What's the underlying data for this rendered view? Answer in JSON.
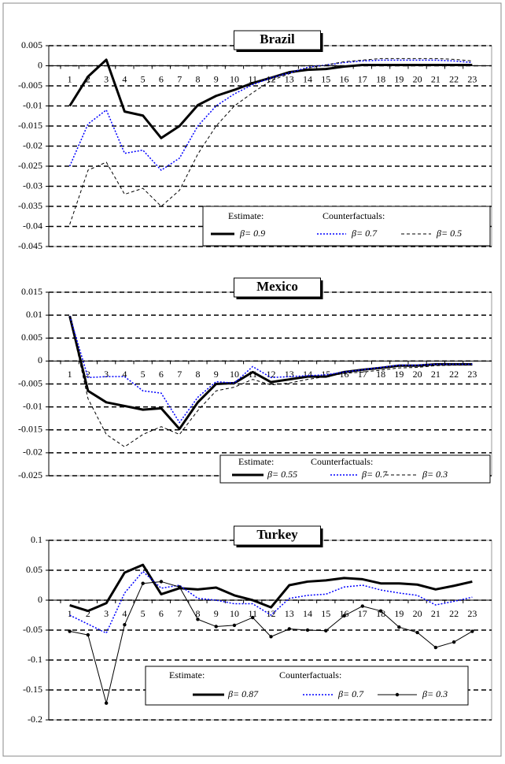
{
  "chart_data": [
    {
      "type": "line",
      "title": "Brazil",
      "categories": [
        1,
        2,
        3,
        4,
        5,
        6,
        7,
        8,
        9,
        10,
        11,
        12,
        13,
        14,
        15,
        16,
        17,
        18,
        19,
        20,
        21,
        22,
        23
      ],
      "ylim": [
        -0.045,
        0.005
      ],
      "yticks": [
        0.005,
        0,
        -0.005,
        -0.01,
        -0.015,
        -0.02,
        -0.025,
        -0.03,
        -0.035,
        -0.04,
        -0.045
      ],
      "grid": true,
      "legend_headings": [
        "Estimate:",
        "Counterfactuals:"
      ],
      "series": [
        {
          "name": "β= 0.9",
          "color": "#000000",
          "style": "thick",
          "values": [
            -0.01,
            -0.0027,
            0.0015,
            -0.0114,
            -0.0124,
            -0.018,
            -0.015,
            -0.0098,
            -0.0075,
            -0.006,
            -0.0043,
            -0.003,
            -0.0016,
            -0.001,
            -0.0008,
            -0.0002,
            0.0002,
            0.0002,
            0.0002,
            0.0002,
            0.0002,
            0.0002,
            0.0002
          ]
        },
        {
          "name": "β= 0.7",
          "color": "#0000ff",
          "style": "dotted",
          "values": [
            -0.025,
            -0.0145,
            -0.011,
            -0.0218,
            -0.021,
            -0.026,
            -0.023,
            -0.015,
            -0.01,
            -0.007,
            -0.0047,
            -0.003,
            -0.0018,
            -0.0004,
            0.0002,
            0.0008,
            0.0012,
            0.0014,
            0.0014,
            0.0014,
            0.0014,
            0.0012,
            0.0008
          ]
        },
        {
          "name": "β= 0.5",
          "color": "#000000",
          "style": "dashed",
          "values": [
            -0.0395,
            -0.026,
            -0.024,
            -0.032,
            -0.0305,
            -0.035,
            -0.031,
            -0.022,
            -0.015,
            -0.01,
            -0.0067,
            -0.0037,
            -0.002,
            -0.0006,
            0.0002,
            0.001,
            0.0014,
            0.0018,
            0.0018,
            0.0018,
            0.0018,
            0.0016,
            0.0012
          ]
        }
      ]
    },
    {
      "type": "line",
      "title": "Mexico",
      "categories": [
        1,
        2,
        3,
        4,
        5,
        6,
        7,
        8,
        9,
        10,
        11,
        12,
        13,
        14,
        15,
        16,
        17,
        18,
        19,
        20,
        21,
        22,
        23
      ],
      "ylim": [
        -0.025,
        0.015
      ],
      "yticks": [
        0.015,
        0.01,
        0.005,
        0,
        -0.005,
        -0.01,
        -0.015,
        -0.02,
        -0.025
      ],
      "grid": true,
      "legend_headings": [
        "Estimate:",
        "Counterfactuals:"
      ],
      "series": [
        {
          "name": "β= 0.55",
          "color": "#000000",
          "style": "thick",
          "values": [
            0.0098,
            -0.0065,
            -0.009,
            -0.0098,
            -0.0106,
            -0.0103,
            -0.0148,
            -0.009,
            -0.005,
            -0.0048,
            -0.0024,
            -0.0046,
            -0.004,
            -0.0034,
            -0.0034,
            -0.0024,
            -0.0019,
            -0.0015,
            -0.001,
            -0.001,
            -0.0007,
            -0.0007,
            -0.0007
          ]
        },
        {
          "name": "β= 0.7",
          "color": "#0000ff",
          "style": "dotted",
          "values": [
            0.0098,
            -0.0036,
            -0.0034,
            -0.0034,
            -0.0065,
            -0.007,
            -0.0134,
            -0.0079,
            -0.0045,
            -0.0048,
            -0.0012,
            -0.0036,
            -0.0034,
            -0.0032,
            -0.003,
            -0.0024,
            -0.0019,
            -0.0014,
            -0.0009,
            -0.0009,
            -0.0007,
            -0.0007,
            -0.0007
          ]
        },
        {
          "name": "β= 0.3",
          "color": "#000000",
          "style": "dashed",
          "values": [
            0.0098,
            -0.0082,
            -0.016,
            -0.0187,
            -0.016,
            -0.0143,
            -0.016,
            -0.0108,
            -0.0065,
            -0.0057,
            -0.004,
            -0.0052,
            -0.0048,
            -0.004,
            -0.0034,
            -0.0027,
            -0.0024,
            -0.002,
            -0.0015,
            -0.0014,
            -0.001,
            -0.0009,
            -0.0009
          ]
        }
      ]
    },
    {
      "type": "line",
      "title": "Turkey",
      "categories": [
        1,
        2,
        3,
        4,
        5,
        6,
        7,
        8,
        9,
        10,
        11,
        12,
        13,
        14,
        15,
        16,
        17,
        18,
        19,
        20,
        21,
        22,
        23
      ],
      "ylim": [
        -0.2,
        0.1
      ],
      "yticks": [
        0.1,
        0.05,
        0,
        -0.05,
        -0.1,
        -0.15,
        -0.2
      ],
      "grid": true,
      "legend_headings": [
        "Estimate:",
        "Counterfactuals:"
      ],
      "series": [
        {
          "name": "β= 0.87",
          "color": "#000000",
          "style": "thick",
          "values": [
            -0.0085,
            -0.018,
            -0.005,
            0.046,
            0.059,
            0.01,
            0.02,
            0.018,
            0.021,
            0.008,
            0.0,
            -0.012,
            0.025,
            0.031,
            0.033,
            0.037,
            0.035,
            0.028,
            0.028,
            0.026,
            0.018,
            0.024,
            0.031
          ]
        },
        {
          "name": "β= 0.7",
          "color": "#0000ff",
          "style": "dotted",
          "values": [
            -0.025,
            -0.04,
            -0.055,
            0.012,
            0.048,
            0.02,
            0.025,
            0.003,
            0.0,
            -0.006,
            -0.006,
            -0.025,
            0.003,
            0.008,
            0.01,
            0.022,
            0.025,
            0.017,
            0.012,
            0.008,
            -0.008,
            -0.002,
            0.005
          ]
        },
        {
          "name": "β= 0.3",
          "color": "#000000",
          "style": "marker",
          "values": [
            -0.052,
            -0.058,
            -0.172,
            -0.041,
            0.028,
            0.031,
            0.022,
            -0.032,
            -0.044,
            -0.042,
            -0.029,
            -0.061,
            -0.048,
            -0.05,
            -0.051,
            -0.026,
            -0.01,
            -0.018,
            -0.045,
            -0.054,
            -0.079,
            -0.07,
            -0.052
          ]
        }
      ]
    }
  ]
}
